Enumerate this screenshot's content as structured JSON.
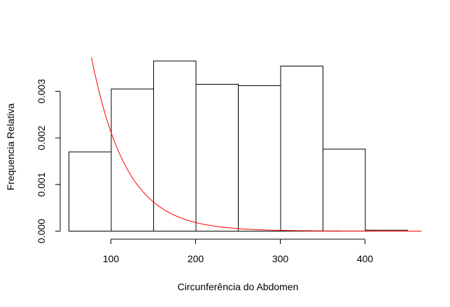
{
  "chart_data": {
    "type": "histogram",
    "title": "",
    "xlabel": "Circunferência do Abdomen",
    "ylabel": "Frequencia Relativa",
    "xlim": [
      50,
      467
    ],
    "ylim": [
      0,
      0.0038
    ],
    "x_ticks": [
      100,
      200,
      300,
      400
    ],
    "y_ticks": [
      0.0,
      0.001,
      0.002,
      0.003
    ],
    "y_tick_labels": [
      "0.000",
      "0.001",
      "0.002",
      "0.003"
    ],
    "bins": [
      {
        "from": 50,
        "to": 100,
        "density": 0.0017
      },
      {
        "from": 100,
        "to": 150,
        "density": 0.00305
      },
      {
        "from": 150,
        "to": 200,
        "density": 0.00365
      },
      {
        "from": 200,
        "to": 250,
        "density": 0.00315
      },
      {
        "from": 250,
        "to": 300,
        "density": 0.00312
      },
      {
        "from": 300,
        "to": 350,
        "density": 0.00354
      },
      {
        "from": 350,
        "to": 400,
        "density": 0.00176
      },
      {
        "from": 400,
        "to": 450,
        "density": 2e-05
      }
    ],
    "bar_fill": "#ffffff",
    "bar_stroke": "#000000",
    "curve": {
      "type": "exponential_density",
      "rate": 0.0244,
      "x_from": 60,
      "x_to": 467,
      "color": "#ff0000"
    },
    "grid": false,
    "legend": false
  }
}
